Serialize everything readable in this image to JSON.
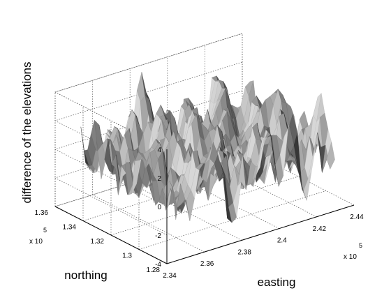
{
  "chart_data": {
    "type": "surface",
    "title": "",
    "xlabel": "easting",
    "ylabel": "northing",
    "zlabel": "difference of the elevations",
    "x_multiplier_text": {
      "base": "x 10",
      "exp": "5"
    },
    "y_multiplier_text": {
      "base": "x 10",
      "exp": "5"
    },
    "xlim": [
      2.34,
      2.44
    ],
    "ylim": [
      1.28,
      1.36
    ],
    "zlim": [
      -4,
      4
    ],
    "x_tick_labels": [
      "2.34",
      "2.36",
      "2.38",
      "2.4",
      "2.42",
      "2.44"
    ],
    "y_tick_labels": [
      "1.28",
      "1.3",
      "1.32",
      "1.34",
      "1.36"
    ],
    "z_tick_labels": [
      "-4",
      "-2",
      "0",
      "2",
      "4"
    ],
    "grid": true,
    "surface_extent": {
      "x": [
        2.35,
        2.435
      ],
      "y": [
        1.287,
        1.355
      ]
    },
    "surface_value_range": [
      -3.6,
      3.9
    ],
    "surface_color": "#9a9a9a"
  }
}
